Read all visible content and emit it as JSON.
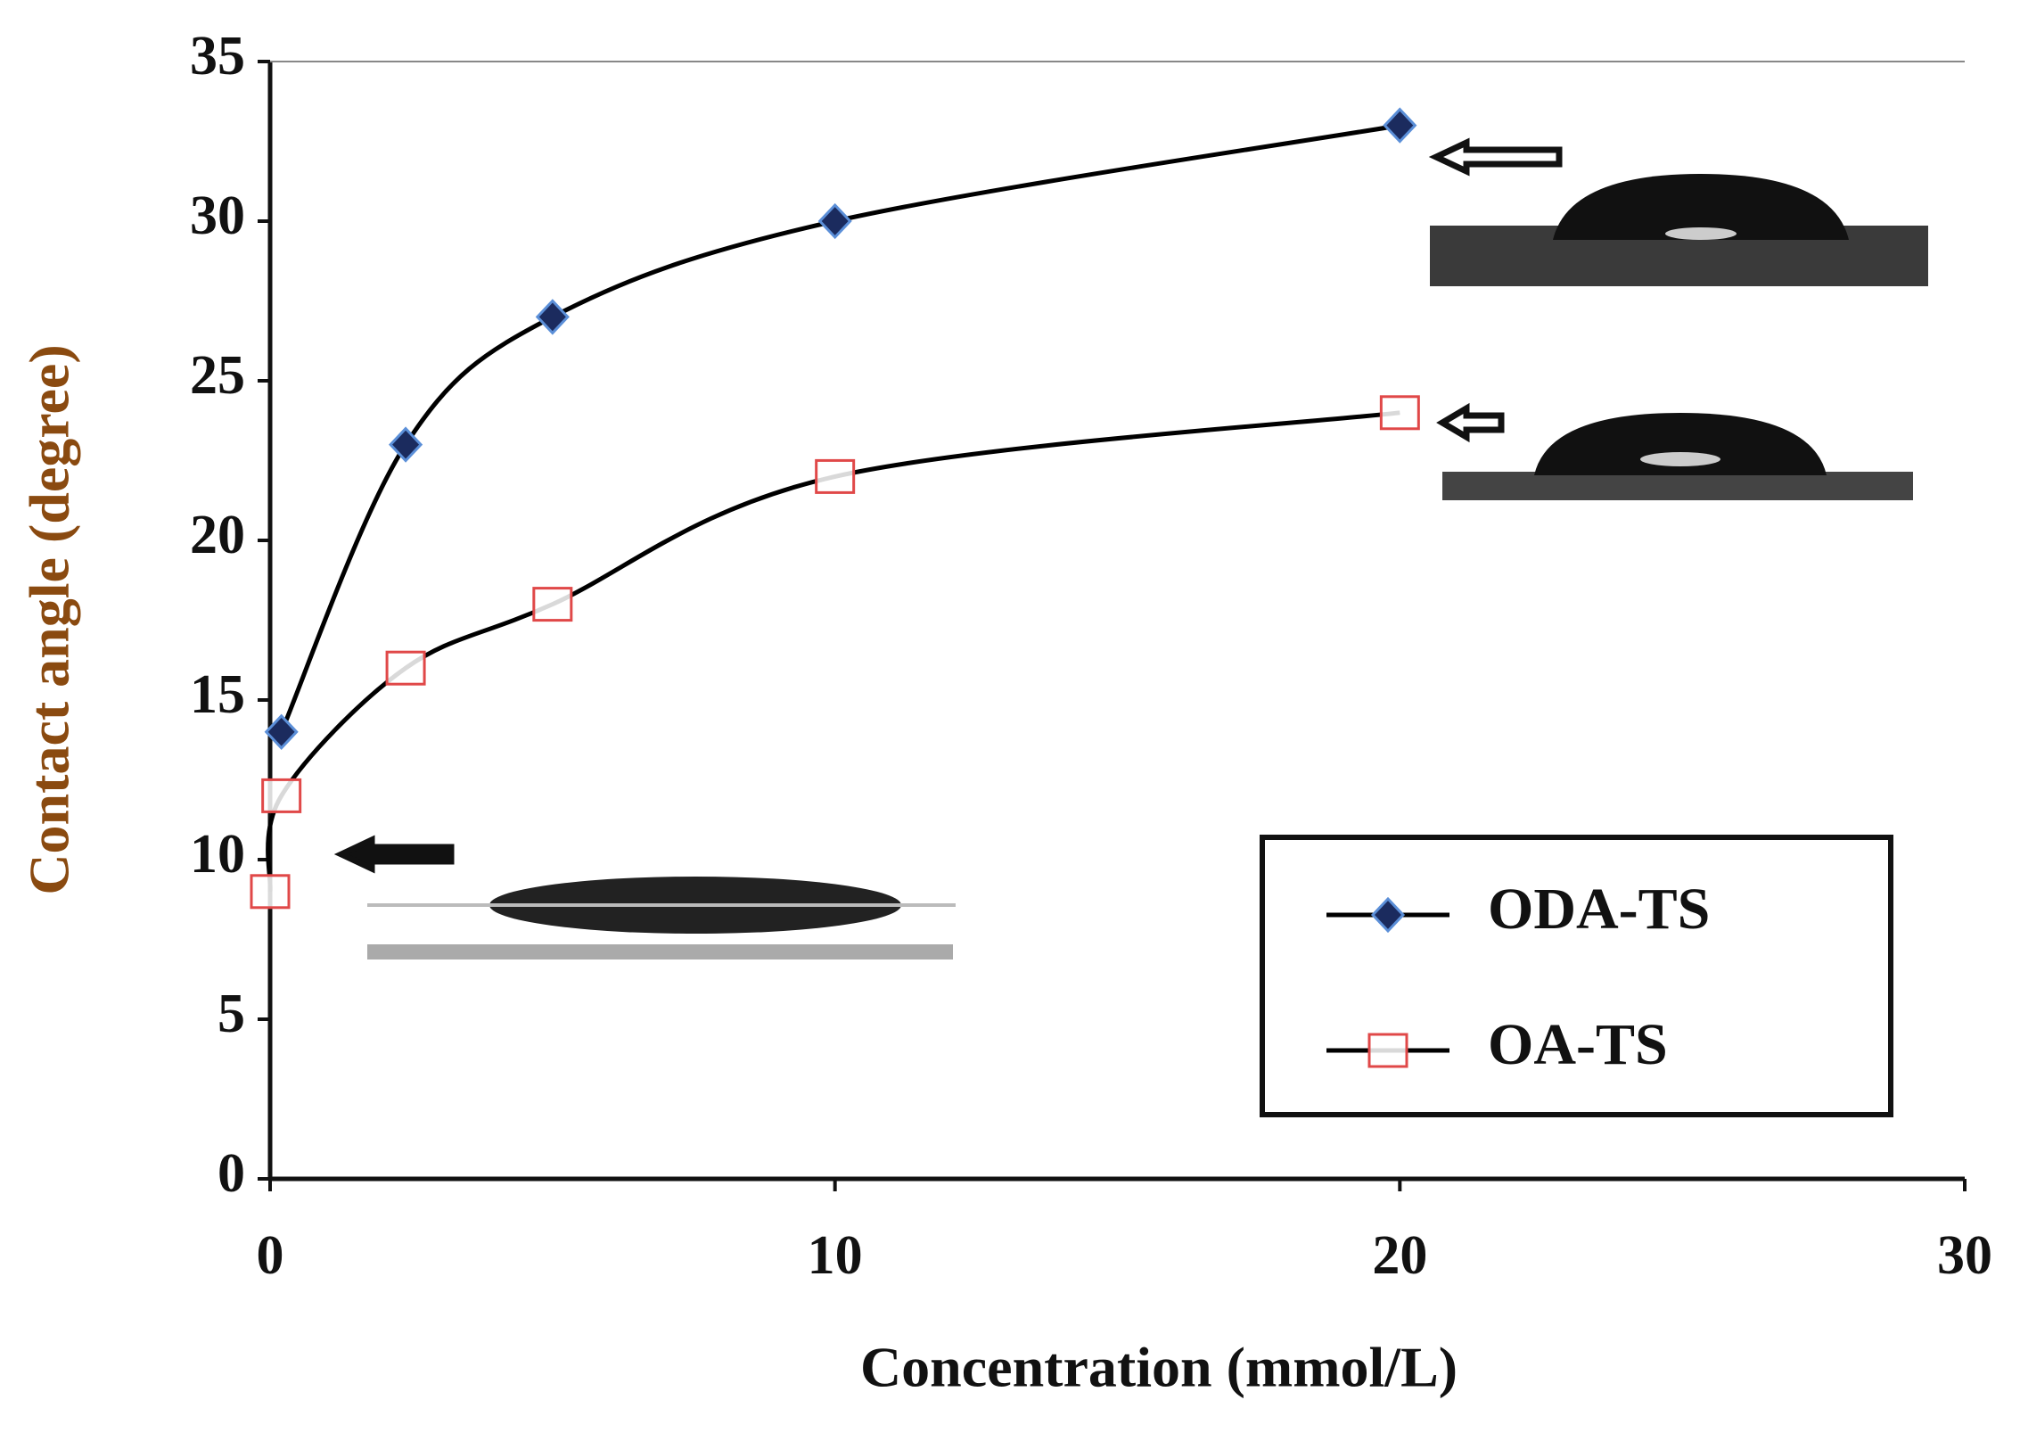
{
  "chart_data": {
    "type": "line",
    "x_label": "Concentration (mmol/L)",
    "y_label": "Contact angle (degree)",
    "xlim": [
      0,
      30
    ],
    "xticks": [
      0,
      10,
      20,
      30
    ],
    "ylim": [
      0,
      35
    ],
    "yticks": [
      0,
      5,
      10,
      15,
      20,
      25,
      30,
      35
    ],
    "legend_position": "lower right",
    "line_color": "#000000",
    "series": [
      {
        "name": "ODA-TS",
        "color": "#1b2b5e",
        "marker": "diamond",
        "x": [
          0.2,
          2.4,
          5,
          10,
          20
        ],
        "values": [
          14,
          23,
          27,
          30,
          33
        ]
      },
      {
        "name": "OA-TS",
        "color": "#e04848",
        "marker": "square",
        "x": [
          0,
          0.2,
          2.4,
          5,
          10,
          20
        ],
        "values": [
          9,
          12,
          16,
          18,
          22,
          24
        ]
      }
    ]
  }
}
